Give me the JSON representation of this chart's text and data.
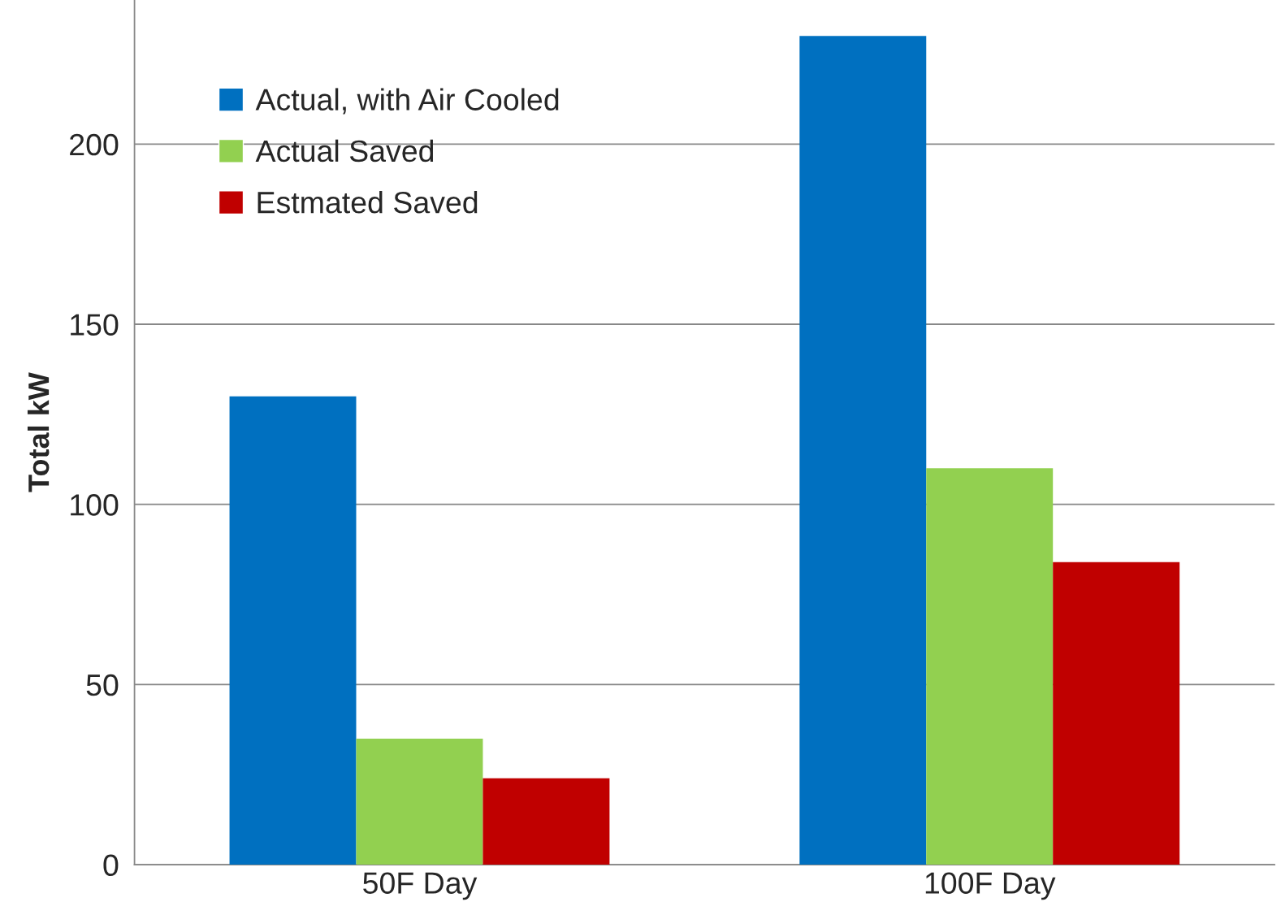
{
  "chart_data": {
    "type": "bar",
    "ylabel": "Total kW",
    "categories": [
      "50F Day",
      "100F Day"
    ],
    "series": [
      {
        "name": "Actual, with Air Cooled",
        "color": "#0070c0",
        "values": [
          130,
          230
        ]
      },
      {
        "name": "Actual Saved",
        "color": "#92d050",
        "values": [
          35,
          110
        ]
      },
      {
        "name": "Estmated Saved",
        "color": "#c00000",
        "values": [
          24,
          84
        ]
      }
    ],
    "ylim": [
      0,
      240
    ],
    "yticks": [
      0,
      50,
      100,
      150,
      200
    ],
    "grid": "y",
    "legend": "top left"
  }
}
